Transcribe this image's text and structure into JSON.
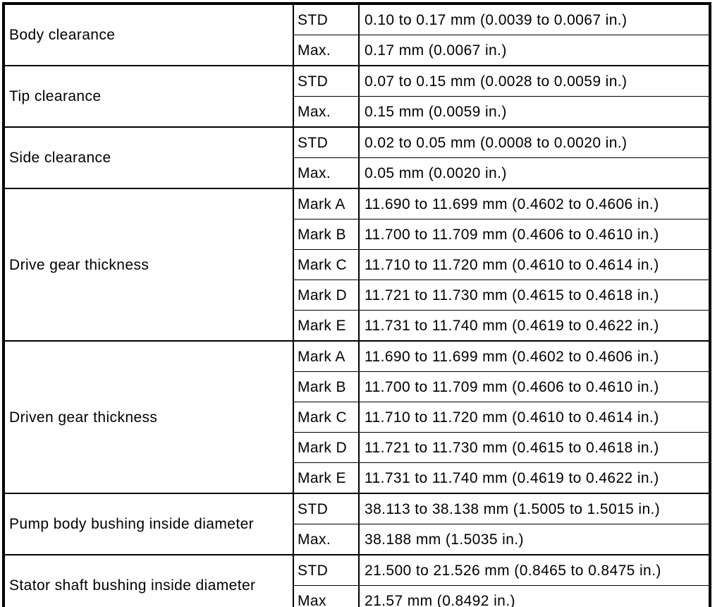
{
  "table": {
    "groups": [
      {
        "name": "Body clearance",
        "rows": [
          {
            "label": "STD",
            "value": "0.10 to 0.17 mm (0.0039 to 0.0067 in.)"
          },
          {
            "label": "Max.",
            "value": "0.17 mm (0.0067 in.)"
          }
        ]
      },
      {
        "name": "Tip clearance",
        "rows": [
          {
            "label": "STD",
            "value": "0.07 to 0.15 mm (0.0028 to 0.0059 in.)"
          },
          {
            "label": "Max.",
            "value": "0.15 mm (0.0059 in.)"
          }
        ]
      },
      {
        "name": "Side clearance",
        "rows": [
          {
            "label": "STD",
            "value": "0.02 to 0.05 mm (0.0008 to 0.0020 in.)"
          },
          {
            "label": "Max.",
            "value": "0.05 mm (0.0020 in.)"
          }
        ]
      },
      {
        "name": "Drive gear thickness",
        "rows": [
          {
            "label": "Mark A",
            "value": "11.690 to 11.699 mm (0.4602 to 0.4606 in.)"
          },
          {
            "label": "Mark B",
            "value": "11.700 to 11.709 mm (0.4606 to 0.4610 in.)"
          },
          {
            "label": "Mark C",
            "value": "11.710 to 11.720 mm (0.4610 to 0.4614 in.)"
          },
          {
            "label": "Mark D",
            "value": "11.721 to 11.730 mm (0.4615 to 0.4618 in.)"
          },
          {
            "label": "Mark E",
            "value": "11.731 to 11.740 mm (0.4619 to 0.4622 in.)"
          }
        ]
      },
      {
        "name": "Driven gear thickness",
        "rows": [
          {
            "label": "Mark A",
            "value": "11.690 to 11.699 mm (0.4602 to 0.4606 in.)"
          },
          {
            "label": "Mark B",
            "value": "11.700 to 11.709 mm (0.4606 to 0.4610 in.)"
          },
          {
            "label": "Mark C",
            "value": "11.710 to 11.720 mm (0.4610 to 0.4614 in.)"
          },
          {
            "label": "Mark D",
            "value": "11.721 to 11.730 mm (0.4615 to 0.4618 in.)"
          },
          {
            "label": "Mark E",
            "value": "11.731 to 11.740 mm (0.4619 to 0.4622 in.)"
          }
        ]
      },
      {
        "name": "Pump body bushing inside diameter",
        "rows": [
          {
            "label": "STD",
            "value": "38.113 to 38.138 mm (1.5005 to 1.5015 in.)"
          },
          {
            "label": "Max.",
            "value": "38.188 mm (1.5035 in.)"
          }
        ]
      },
      {
        "name": "Stator shaft bushing inside diameter",
        "rows": [
          {
            "label": "STD",
            "value": "21.500 to 21.526 mm (0.8465 to 0.8475 in.)"
          },
          {
            "label": "Max",
            "value": "21.57 mm (0.8492 in.)"
          }
        ]
      }
    ]
  }
}
